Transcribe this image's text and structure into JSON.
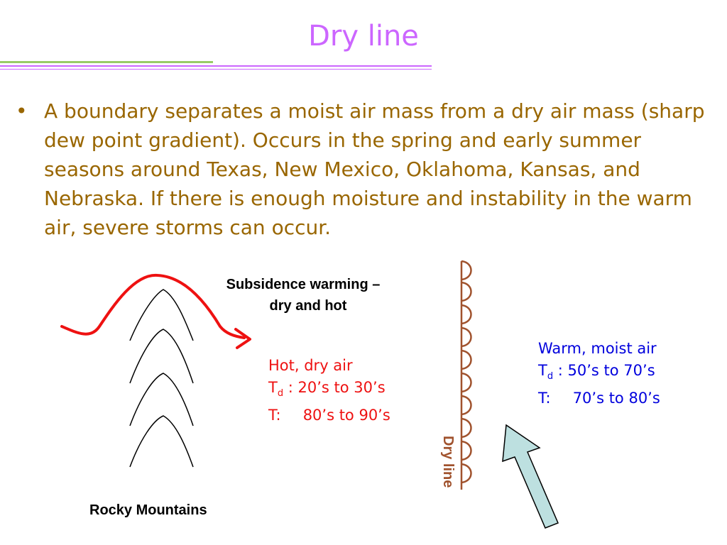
{
  "slide": {
    "title": "Dry line",
    "bullet": "A boundary separates a moist air mass from a dry air mass (sharp dew point gradient).  Occurs in the spring and early summer seasons around Texas, New Mexico, Oklahoma, Kansas, and Nebraska.  If there is enough moisture and instability in the warm air, severe storms can occur."
  },
  "diagram": {
    "subsidence_line1": "Subsidence warming –",
    "subsidence_line2": "dry and hot",
    "hot_air": {
      "title": "Hot, dry air",
      "td_symbol": "T",
      "td_sub": "d",
      "td_value": ": 20’s to 30’s",
      "t_symbol": "T:",
      "t_value": "80’s to 90’s"
    },
    "warm_air": {
      "title": "Warm, moist air",
      "td_symbol": "T",
      "td_sub": "d",
      "td_value": ": 50’s to 70’s",
      "t_symbol": "T:",
      "t_value": "70’s to 80’s"
    },
    "mountains_label": "Rocky Mountains",
    "dry_line_label": "Dry line",
    "colors": {
      "title": "#cc66ff",
      "body_text": "#996600",
      "hot_text": "#ee1111",
      "warm_text": "#0000dd",
      "wind_arrow": "#ee1111",
      "dry_line": "#a0522d",
      "moist_arrow_fill": "#bde0e0"
    }
  }
}
